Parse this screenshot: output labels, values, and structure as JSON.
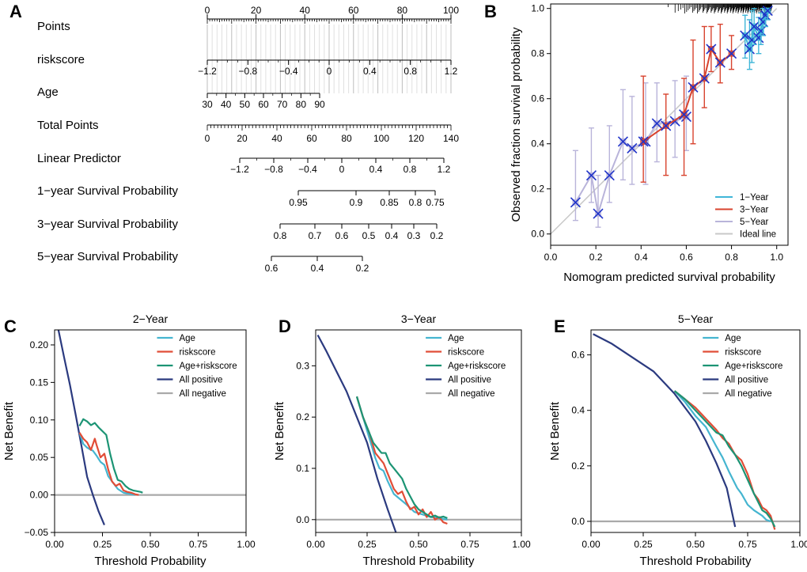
{
  "panels": {
    "A": "A",
    "B": "B",
    "C": "C",
    "D": "D",
    "E": "E"
  },
  "nomogram": {
    "rows": [
      {
        "name": "Points",
        "ticks": [
          "0",
          "20",
          "40",
          "60",
          "80",
          "100"
        ],
        "vals": [
          0,
          20,
          40,
          60,
          80,
          100
        ]
      },
      {
        "name": "riskscore",
        "ticks": [
          "−1.2",
          "−0.8",
          "−0.4",
          "0",
          "0.4",
          "0.8",
          "1.2"
        ],
        "vals": [
          -1.2,
          -0.8,
          -0.4,
          0,
          0.4,
          0.8,
          1.2
        ]
      },
      {
        "name": "Age",
        "ticks": [
          "30",
          "40",
          "50",
          "60",
          "70",
          "80",
          "90"
        ],
        "vals": [
          30,
          40,
          50,
          60,
          70,
          80,
          90
        ]
      },
      {
        "name": "Total Points",
        "ticks": [
          "0",
          "20",
          "40",
          "60",
          "80",
          "100",
          "120",
          "140"
        ],
        "vals": [
          0,
          20,
          40,
          60,
          80,
          100,
          120,
          140
        ]
      },
      {
        "name": "Linear Predictor",
        "ticks": [
          "−1.2",
          "−0.8",
          "−0.4",
          "0",
          "0.4",
          "0.8",
          "1.2"
        ],
        "vals": [
          -1.2,
          -0.8,
          -0.4,
          0,
          0.4,
          0.8,
          1.2
        ]
      },
      {
        "name": "1−year Survival Probability",
        "ticks": [
          "0.95",
          "0.9",
          "0.85",
          "0.8",
          "0.75"
        ],
        "vals": [
          0.95,
          0.9,
          0.85,
          0.8,
          0.75
        ]
      },
      {
        "name": "3−year Survival Probability",
        "ticks": [
          "0.8",
          "0.7",
          "0.6",
          "0.5",
          "0.4",
          "0.3",
          "0.2"
        ],
        "vals": [
          0.8,
          0.7,
          0.6,
          0.5,
          0.4,
          0.3,
          0.2
        ]
      },
      {
        "name": "5−year Survival Probability",
        "ticks": [
          "0.6",
          "0.4",
          "0.2"
        ],
        "vals": [
          0.6,
          0.4,
          0.2
        ]
      }
    ]
  },
  "chart_data": [
    {
      "id": "calibration",
      "type": "line",
      "xlabel": "Nomogram predicted survival probability",
      "ylabel": "Observed fraction survival probability",
      "xlim": [
        0,
        1.05
      ],
      "ylim": [
        -0.05,
        1.02
      ],
      "xticks": [
        "0.0",
        "0.2",
        "0.4",
        "0.6",
        "0.8",
        "1.0"
      ],
      "yticks": [
        "0.0",
        "0.2",
        "0.4",
        "0.6",
        "0.8",
        "1.0"
      ],
      "legend": [
        "1−Year",
        "3−Year",
        "5−Year",
        "Ideal line"
      ],
      "colors": {
        "y1": "#3FB6D8",
        "y3": "#D8432E",
        "y5": "#B9B4DA",
        "ideal": "#C8C8C8"
      },
      "series": [
        {
          "name": "5−Year",
          "x": [
            0.11,
            0.18,
            0.21,
            0.26,
            0.32,
            0.36,
            0.42,
            0.47,
            0.55,
            0.6
          ],
          "y": [
            0.14,
            0.26,
            0.09,
            0.26,
            0.41,
            0.38,
            0.41,
            0.49,
            0.5,
            0.52
          ],
          "lo": [
            0.06,
            0.14,
            0.03,
            0.14,
            0.24,
            0.22,
            0.22,
            0.32,
            0.34,
            0.37
          ],
          "hi": [
            0.37,
            0.47,
            0.26,
            0.48,
            0.64,
            0.61,
            0.67,
            0.67,
            0.68,
            0.7
          ]
        },
        {
          "name": "3−Year",
          "x": [
            0.41,
            0.51,
            0.59,
            0.63,
            0.68,
            0.71,
            0.75,
            0.8
          ],
          "y": [
            0.41,
            0.48,
            0.53,
            0.65,
            0.69,
            0.82,
            0.76,
            0.8
          ],
          "lo": [
            0.23,
            0.26,
            0.26,
            0.4,
            0.56,
            0.72,
            0.67,
            0.73
          ],
          "hi": [
            0.7,
            0.62,
            0.69,
            0.86,
            0.92,
            0.92,
            0.93,
            0.88
          ],
          "highlight": [
            0.6,
            0.67,
            0.7,
            0.79
          ]
        },
        {
          "name": "1−Year",
          "x": [
            0.86,
            0.88,
            0.89,
            0.9,
            0.92,
            0.93,
            0.94,
            0.95,
            0.96
          ],
          "y": [
            0.88,
            0.82,
            0.86,
            0.92,
            0.87,
            0.9,
            0.94,
            0.97,
            0.99
          ],
          "lo": [
            0.78,
            0.73,
            0.76,
            0.84,
            0.8,
            0.84,
            0.88,
            0.92,
            0.95
          ],
          "hi": [
            0.97,
            0.95,
            0.99,
            1.0,
            0.96,
            0.98,
            1.0,
            1.0,
            1.0
          ]
        }
      ]
    },
    {
      "id": "dca2",
      "type": "line",
      "title": "2−Year",
      "xlabel": "Threshold Probability",
      "ylabel": "Net Benefit",
      "xlim": [
        0,
        1
      ],
      "ylim": [
        -0.05,
        0.22
      ],
      "xticks": [
        "0.00",
        "0.25",
        "0.50",
        "0.75",
        "1.00"
      ],
      "yticks": [
        "−0.05",
        "0.00",
        "0.05",
        "0.10",
        "0.15",
        "0.20"
      ],
      "legend": [
        "Age",
        "riskscore",
        "Age+riskscore",
        "All positive",
        "All negative"
      ],
      "colors": [
        "#45B5D0",
        "#E14D37",
        "#1C9474",
        "#2B3A7F",
        "#A9A9A9"
      ],
      "series": [
        {
          "name": "Age",
          "x": [
            0.13,
            0.15,
            0.17,
            0.19,
            0.2,
            0.22,
            0.24,
            0.26,
            0.28,
            0.3,
            0.33,
            0.36,
            0.38,
            0.4,
            0.42
          ],
          "y": [
            0.083,
            0.068,
            0.063,
            0.06,
            0.059,
            0.052,
            0.044,
            0.04,
            0.025,
            0.018,
            0.008,
            0.003,
            0.002,
            0.001,
            0.0
          ]
        },
        {
          "name": "riskscore",
          "x": [
            0.13,
            0.15,
            0.17,
            0.19,
            0.21,
            0.22,
            0.24,
            0.26,
            0.28,
            0.3,
            0.32,
            0.34,
            0.36,
            0.38,
            0.4,
            0.42,
            0.44
          ],
          "y": [
            0.083,
            0.075,
            0.07,
            0.06,
            0.075,
            0.066,
            0.05,
            0.055,
            0.034,
            0.018,
            0.012,
            0.015,
            0.006,
            0.004,
            0.003,
            0.001,
            0.0
          ]
        },
        {
          "name": "Age+riskscore",
          "x": [
            0.13,
            0.15,
            0.17,
            0.19,
            0.21,
            0.23,
            0.25,
            0.27,
            0.29,
            0.31,
            0.33,
            0.35,
            0.37,
            0.39,
            0.41,
            0.43,
            0.45,
            0.46
          ],
          "y": [
            0.092,
            0.101,
            0.098,
            0.093,
            0.096,
            0.09,
            0.085,
            0.08,
            0.055,
            0.035,
            0.02,
            0.018,
            0.012,
            0.008,
            0.006,
            0.005,
            0.004,
            0.003
          ]
        },
        {
          "name": "All positive",
          "x": [
            0.02,
            0.05,
            0.08,
            0.11,
            0.14,
            0.17,
            0.2,
            0.23,
            0.26
          ],
          "y": [
            0.22,
            0.183,
            0.147,
            0.107,
            0.066,
            0.024,
            -0.0,
            -0.022,
            -0.04
          ]
        },
        {
          "name": "All negative",
          "x": [
            0,
            1
          ],
          "y": [
            0,
            0
          ]
        }
      ]
    },
    {
      "id": "dca3",
      "type": "line",
      "title": "3−Year",
      "xlabel": "Threshold Probability",
      "ylabel": "Net Benefit",
      "xlim": [
        0,
        1
      ],
      "ylim": [
        -0.025,
        0.37
      ],
      "xticks": [
        "0.00",
        "0.25",
        "0.50",
        "0.75",
        "1.00"
      ],
      "yticks": [
        "0.0",
        "0.1",
        "0.2",
        "0.3"
      ],
      "legend": [
        "Age",
        "riskscore",
        "Age+riskscore",
        "All positive",
        "All negative"
      ],
      "colors": [
        "#45B5D0",
        "#E14D37",
        "#1C9474",
        "#2B3A7F",
        "#A9A9A9"
      ],
      "series": [
        {
          "name": "Age",
          "x": [
            0.2,
            0.23,
            0.26,
            0.29,
            0.31,
            0.33,
            0.35,
            0.38,
            0.41,
            0.44,
            0.48,
            0.52,
            0.56,
            0.6,
            0.64
          ],
          "y": [
            0.24,
            0.2,
            0.16,
            0.12,
            0.1,
            0.095,
            0.075,
            0.05,
            0.04,
            0.03,
            0.015,
            0.01,
            0.005,
            0.003,
            0.0
          ]
        },
        {
          "name": "riskscore",
          "x": [
            0.2,
            0.23,
            0.26,
            0.29,
            0.31,
            0.33,
            0.35,
            0.38,
            0.4,
            0.42,
            0.44,
            0.46,
            0.48,
            0.5,
            0.52,
            0.54,
            0.56,
            0.58,
            0.6,
            0.62,
            0.64
          ],
          "y": [
            0.24,
            0.2,
            0.17,
            0.13,
            0.12,
            0.11,
            0.09,
            0.06,
            0.05,
            0.055,
            0.035,
            0.02,
            0.025,
            0.01,
            0.02,
            0.005,
            0.015,
            0.0,
            0.005,
            -0.005,
            -0.008
          ]
        },
        {
          "name": "Age+riskscore",
          "x": [
            0.2,
            0.23,
            0.26,
            0.28,
            0.3,
            0.32,
            0.34,
            0.36,
            0.38,
            0.4,
            0.42,
            0.44,
            0.46,
            0.48,
            0.5,
            0.52,
            0.54,
            0.56,
            0.58,
            0.6,
            0.62,
            0.64
          ],
          "y": [
            0.24,
            0.2,
            0.17,
            0.15,
            0.14,
            0.13,
            0.13,
            0.11,
            0.1,
            0.09,
            0.08,
            0.06,
            0.045,
            0.03,
            0.02,
            0.015,
            0.01,
            0.005,
            0.008,
            0.004,
            0.006,
            0.003
          ]
        },
        {
          "name": "All positive",
          "x": [
            0.01,
            0.05,
            0.1,
            0.15,
            0.2,
            0.25,
            0.3,
            0.35,
            0.39
          ],
          "y": [
            0.36,
            0.33,
            0.29,
            0.25,
            0.2,
            0.15,
            0.08,
            0.02,
            -0.025
          ]
        },
        {
          "name": "All negative",
          "x": [
            0,
            1
          ],
          "y": [
            0,
            0
          ]
        }
      ]
    },
    {
      "id": "dca5",
      "type": "line",
      "title": "5−Year",
      "xlabel": "Threshold Probability",
      "ylabel": "Net Benefit",
      "xlim": [
        0,
        1
      ],
      "ylim": [
        -0.04,
        0.69
      ],
      "xticks": [
        "0.00",
        "0.25",
        "0.50",
        "0.75",
        "1.00"
      ],
      "yticks": [
        "0.0",
        "0.2",
        "0.4",
        "0.6"
      ],
      "legend": [
        "Age",
        "riskscore",
        "Age+riskscore",
        "All positive",
        "All negative"
      ],
      "colors": [
        "#45B5D0",
        "#E14D37",
        "#1C9474",
        "#2B3A7F",
        "#A9A9A9"
      ],
      "series": [
        {
          "name": "Age",
          "x": [
            0.4,
            0.45,
            0.5,
            0.55,
            0.6,
            0.63,
            0.66,
            0.7,
            0.72,
            0.75,
            0.78,
            0.8,
            0.82,
            0.84,
            0.86
          ],
          "y": [
            0.47,
            0.43,
            0.38,
            0.34,
            0.27,
            0.23,
            0.18,
            0.12,
            0.1,
            0.06,
            0.04,
            0.03,
            0.02,
            0.005,
            0.0
          ]
        },
        {
          "name": "riskscore",
          "x": [
            0.4,
            0.45,
            0.5,
            0.55,
            0.6,
            0.63,
            0.66,
            0.69,
            0.72,
            0.75,
            0.78,
            0.8,
            0.82,
            0.84,
            0.86,
            0.88
          ],
          "y": [
            0.47,
            0.44,
            0.41,
            0.37,
            0.33,
            0.3,
            0.28,
            0.24,
            0.22,
            0.17,
            0.1,
            0.08,
            0.05,
            0.04,
            0.02,
            -0.03
          ]
        },
        {
          "name": "Age+riskscore",
          "x": [
            0.4,
            0.45,
            0.5,
            0.55,
            0.6,
            0.63,
            0.66,
            0.69,
            0.72,
            0.75,
            0.78,
            0.8,
            0.82,
            0.84,
            0.86,
            0.88
          ],
          "y": [
            0.47,
            0.44,
            0.4,
            0.36,
            0.32,
            0.31,
            0.27,
            0.24,
            0.2,
            0.15,
            0.1,
            0.07,
            0.04,
            0.03,
            0.01,
            -0.02
          ]
        },
        {
          "name": "All positive",
          "x": [
            0.01,
            0.1,
            0.2,
            0.3,
            0.4,
            0.5,
            0.55,
            0.6,
            0.65,
            0.69
          ],
          "y": [
            0.675,
            0.64,
            0.59,
            0.54,
            0.46,
            0.36,
            0.29,
            0.21,
            0.12,
            -0.02
          ]
        },
        {
          "name": "All negative",
          "x": [
            0,
            1
          ],
          "y": [
            0,
            0
          ]
        }
      ]
    }
  ]
}
